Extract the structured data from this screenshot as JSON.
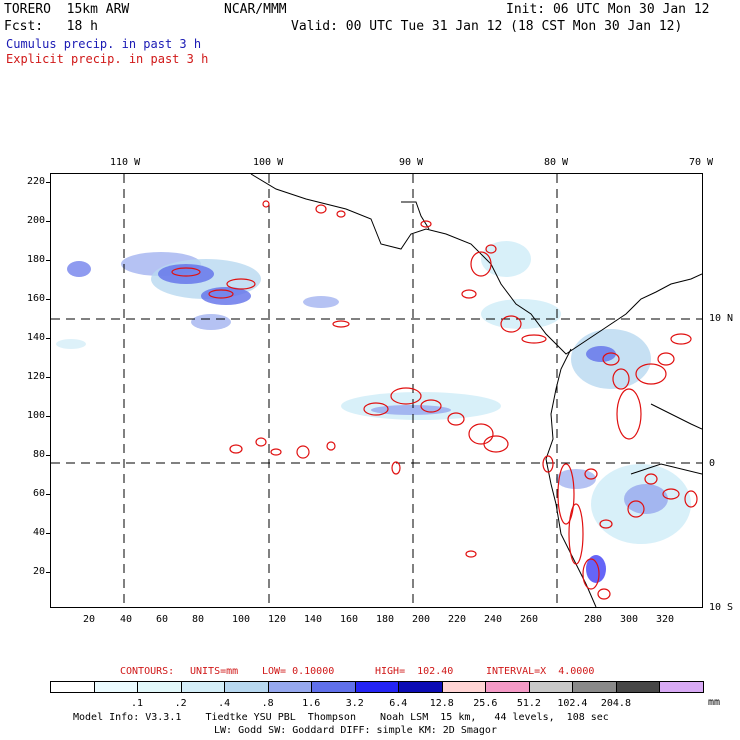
{
  "header": {
    "model": "TORERO  15km ARW",
    "org": "NCAR/MMM",
    "init": "Init: 06 UTC Mon 30 Jan 12",
    "fcst": "Fcst:   18 h",
    "valid": "Valid: 00 UTC Tue 31 Jan 12 (18 CST Mon 30 Jan 12)",
    "cumulus": "Cumulus precip. in past 3 h",
    "explicit": "Explicit precip. in past 3 h"
  },
  "colors": {
    "cumulus": "#1a1ab4",
    "explicit": "#d01818",
    "contour": "#e01010"
  },
  "axes": {
    "lon_labels": [
      "110 W",
      "100 W",
      "90 W",
      "80 W",
      "70 W"
    ],
    "lat_labels": [
      "10 N",
      "0",
      "10 S"
    ],
    "y_ticks": [
      "220",
      "200",
      "180",
      "160",
      "140",
      "120",
      "100",
      "80",
      "60",
      "40",
      "20"
    ],
    "x_ticks": [
      "20",
      "40",
      "60",
      "80",
      "100",
      "120",
      "140",
      "160",
      "180",
      "200",
      "220",
      "240",
      "260",
      "280",
      "300",
      "320"
    ]
  },
  "contours": {
    "label": "CONTOURS:",
    "units": "UNITS=mm",
    "low": "LOW= 0.10000",
    "high": "HIGH=  102.40",
    "interval": "INTERVAL=X  4.0000"
  },
  "colorbar": {
    "colors": [
      "#ffffff",
      "#ebfbff",
      "#e2f8fa",
      "#d4eef8",
      "#b8d8f0",
      "#96a8ee",
      "#6070ea",
      "#2424f4",
      "#0c0cb4",
      "#ffd4d4",
      "#f49ac6",
      "#c8c8c8",
      "#8a8a8a",
      "#474747",
      "#d8aaf4"
    ],
    "labels": [
      ".1",
      ".2",
      ".4",
      ".8",
      "1.6",
      "3.2",
      "6.4",
      "12.8",
      "25.6",
      "51.2",
      "102.4",
      "204.8"
    ],
    "unit": "mm"
  },
  "footer": {
    "line1": "Model Info: V3.3.1    Tiedtke YSU PBL  Thompson    Noah LSM  15 km,   44 levels,  108 sec",
    "line2": "LW: Godd SW: Goddard DIFF: simple KM: 2D Smagor"
  }
}
